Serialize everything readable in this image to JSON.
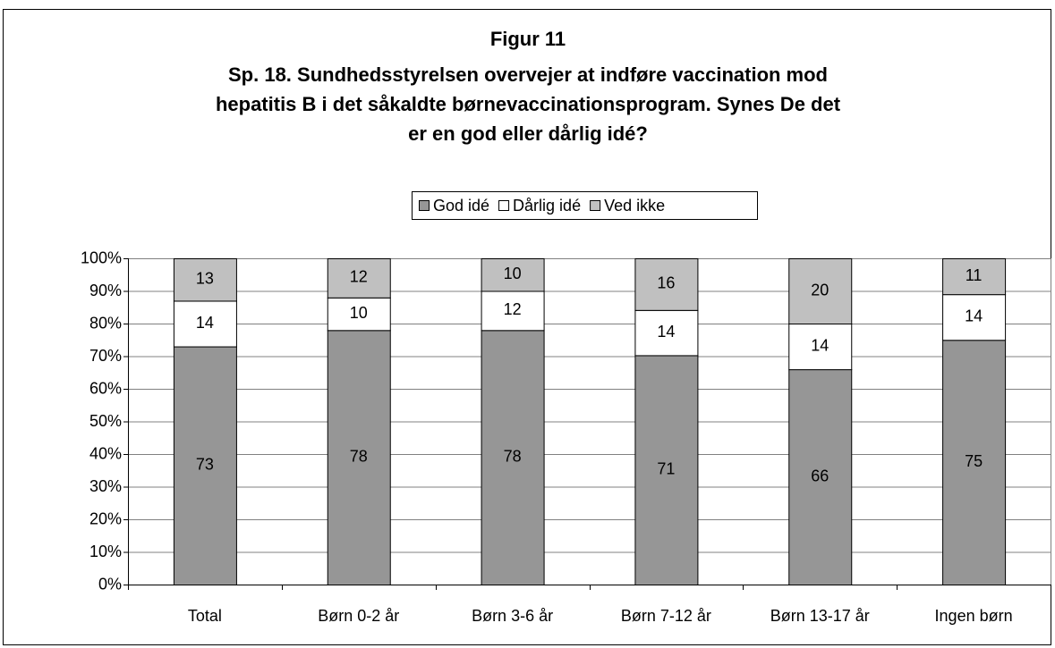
{
  "chart_data": {
    "type": "bar",
    "stacking": "percent",
    "title": [
      "Figur 11",
      "Sp. 18. Sundhedsstyrelsen overvejer at indføre vaccination mod",
      "hepatitis B i det såkaldte børnevaccinationsprogram. Synes De det",
      "er en god eller dårlig idé?"
    ],
    "categories": [
      "Total",
      "Børn 0-2 år",
      "Børn 3-6 år",
      "Børn 7-12 år",
      "Børn 13-17 år",
      "Ingen børn"
    ],
    "series": [
      {
        "name": "God idé",
        "color": "#969696",
        "values": [
          73,
          78,
          78,
          71,
          66,
          75
        ]
      },
      {
        "name": "Dårlig idé",
        "color": "#ffffff",
        "values": [
          14,
          10,
          12,
          14,
          14,
          14
        ]
      },
      {
        "name": "Ved ikke",
        "color": "#c0c0c0",
        "values": [
          13,
          12,
          10,
          16,
          20,
          11
        ]
      }
    ],
    "ylim": [
      0,
      100
    ],
    "yticks": [
      {
        "value": 0,
        "label": "0%"
      },
      {
        "value": 10,
        "label": "10%"
      },
      {
        "value": 20,
        "label": "20%"
      },
      {
        "value": 30,
        "label": "30%"
      },
      {
        "value": 40,
        "label": "40%"
      },
      {
        "value": 50,
        "label": "50%"
      },
      {
        "value": 60,
        "label": "60%"
      },
      {
        "value": 70,
        "label": "70%"
      },
      {
        "value": 80,
        "label": "80%"
      },
      {
        "value": 90,
        "label": "90%"
      },
      {
        "value": 100,
        "label": "100%"
      }
    ],
    "grid": true,
    "legend": "top"
  }
}
